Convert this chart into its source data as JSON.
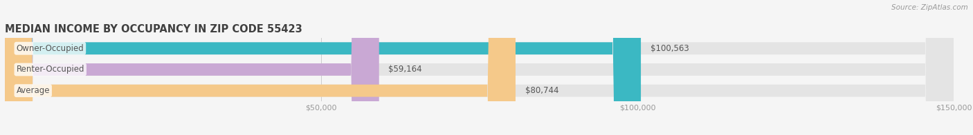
{
  "title": "MEDIAN INCOME BY OCCUPANCY IN ZIP CODE 55423",
  "source": "Source: ZipAtlas.com",
  "categories": [
    "Owner-Occupied",
    "Renter-Occupied",
    "Average"
  ],
  "values": [
    100563,
    59164,
    80744
  ],
  "bar_colors": [
    "#3bb8c3",
    "#c9a8d4",
    "#f5c98a"
  ],
  "bar_labels": [
    "$100,563",
    "$59,164",
    "$80,744"
  ],
  "xlim": [
    0,
    150000
  ],
  "xticks": [
    0,
    50000,
    100000,
    150000
  ],
  "xtick_labels": [
    "",
    "$50,000",
    "$100,000",
    "$150,000"
  ],
  "background_color": "#f5f5f5",
  "bar_bg_color": "#e4e4e4",
  "title_fontsize": 10.5,
  "label_fontsize": 8.5,
  "tick_fontsize": 8,
  "source_fontsize": 7.5,
  "bar_height": 0.58,
  "label_color": "#555555",
  "title_color": "#404040",
  "tick_color": "#999999",
  "source_color": "#999999",
  "grid_color": "#cccccc",
  "grid_lw": 0.7
}
